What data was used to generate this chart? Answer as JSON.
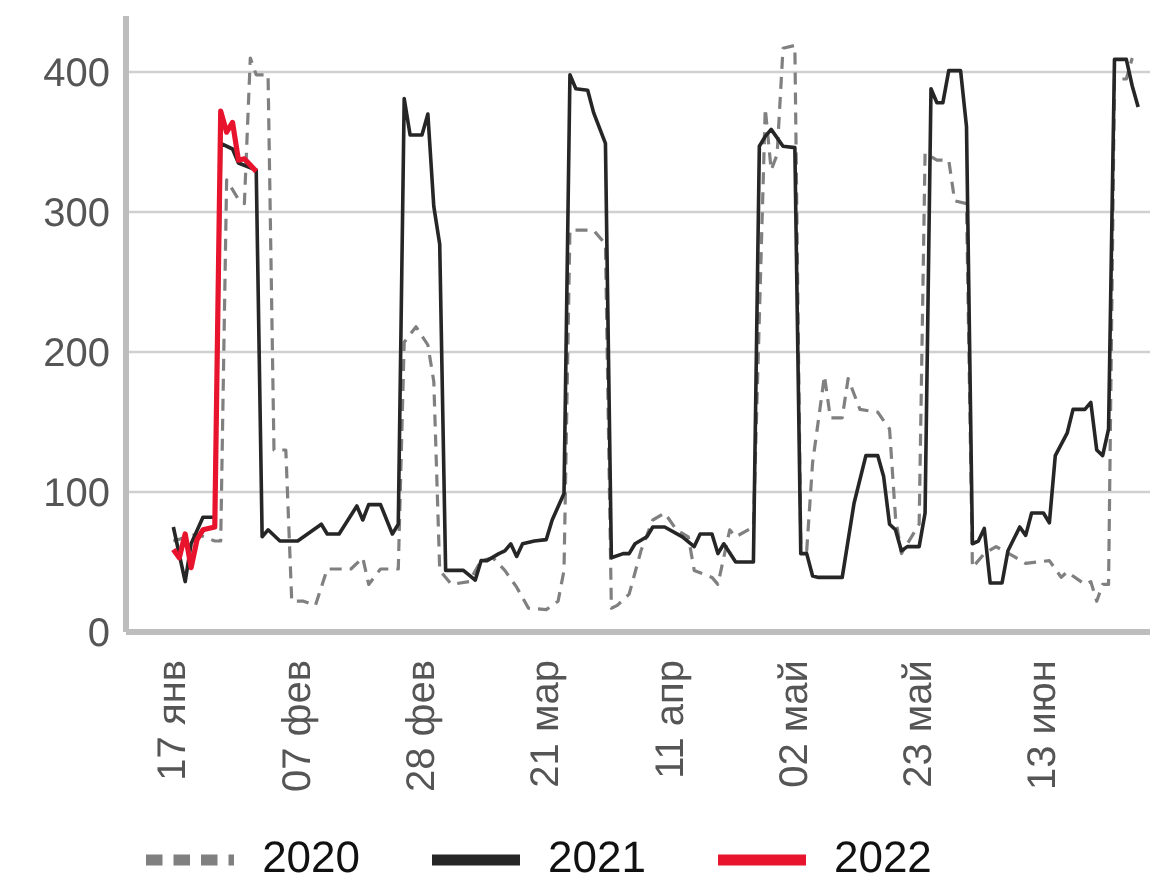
{
  "chart_data": {
    "type": "line",
    "grid": "y",
    "legend": "bottom",
    "xlim": [
      "--01-09",
      "--07-01"
    ],
    "xticks": [
      {
        "value": "--01-17",
        "label": "17 янв"
      },
      {
        "value": "--02-07",
        "label": "07 фев"
      },
      {
        "value": "--02-28",
        "label": "28 фев"
      },
      {
        "value": "--03-21",
        "label": "21 мар"
      },
      {
        "value": "--04-11",
        "label": "11 апр"
      },
      {
        "value": "--05-02",
        "label": "02 май"
      },
      {
        "value": "--05-23",
        "label": "23 май"
      },
      {
        "value": "--06-13",
        "label": "13 июн"
      }
    ],
    "ylim": [
      0,
      440
    ],
    "yticks": [
      0,
      100,
      200,
      300,
      400
    ],
    "series": [
      {
        "name": "2020",
        "color": "#808080",
        "line_style": "dashed",
        "x": [
          "--01-17",
          "--01-21",
          "--01-24",
          "--01-25",
          "--01-26",
          "--01-28",
          "--01-29",
          "--01-30",
          "--01-31",
          "--02-02",
          "--02-03",
          "--02-05",
          "--02-06",
          "--02-08",
          "--02-10",
          "--02-12",
          "--02-16",
          "--02-18",
          "--02-19",
          "--02-21",
          "--02-24",
          "--02-25",
          "--02-27",
          "--03-01",
          "--03-02",
          "--03-03",
          "--03-05",
          "--03-08",
          "--03-10",
          "--03-12",
          "--03-14",
          "--03-16",
          "--03-18",
          "--03-21",
          "--03-23",
          "--03-24",
          "--03-25",
          "--03-29",
          "--03-31",
          "--04-01",
          "--04-02",
          "--04-04",
          "--04-06",
          "--04-08",
          "--04-10",
          "--04-12",
          "--04-14",
          "--04-15",
          "--04-18",
          "--04-19",
          "--04-21",
          "--04-22",
          "--04-25",
          "--04-27",
          "--04-28",
          "--04-29",
          "--04-30",
          "--05-02",
          "--05-03",
          "--05-04",
          "--05-05",
          "--05-07",
          "--05-08",
          "--05-10",
          "--05-11",
          "--05-13",
          "--05-16",
          "--05-18",
          "--05-19",
          "--05-20",
          "--05-21",
          "--05-23",
          "--05-24",
          "--05-26",
          "--05-28",
          "--05-29",
          "--05-31",
          "--06-01",
          "--06-03",
          "--06-05",
          "--06-08",
          "--06-10",
          "--06-14",
          "--06-16",
          "--06-17",
          "--06-20",
          "--06-21",
          "--06-22",
          "--06-23",
          "--06-24",
          "--06-25",
          "--06-27",
          "--06-28"
        ],
        "values": [
          65,
          70,
          65,
          65,
          323,
          309,
          306,
          410,
          398,
          398,
          130,
          130,
          22,
          22,
          19,
          45,
          45,
          53,
          34,
          45,
          45,
          207,
          218,
          205,
          179,
          44,
          34,
          36,
          51,
          53,
          44,
          32,
          17,
          16,
          22,
          44,
          287,
          287,
          277,
          17,
          19,
          27,
          58,
          80,
          85,
          73,
          68,
          44,
          39,
          34,
          73,
          68,
          75,
          374,
          330,
          341,
          417,
          419,
          63,
          58,
          121,
          183,
          153,
          153,
          181,
          159,
          157,
          145,
          82,
          56,
          63,
          77,
          342,
          337,
          337,
          308,
          306,
          46,
          56,
          61,
          54,
          49,
          51,
          39,
          43,
          34,
          36,
          22,
          34,
          34,
          395,
          395,
          410
        ]
      },
      {
        "name": "2021",
        "color": "#262626",
        "line_style": "solid",
        "x": [
          "--01-17",
          "--01-19",
          "--01-20",
          "--01-22",
          "--01-24",
          "--01-25",
          "--01-27",
          "--01-28",
          "--01-31",
          "--02-01",
          "--02-02",
          "--02-04",
          "--02-07",
          "--02-11",
          "--02-12",
          "--02-14",
          "--02-17",
          "--02-18",
          "--02-19",
          "--02-21",
          "--02-23",
          "--02-24",
          "--02-25",
          "--02-26",
          "--02-28",
          "--03-01",
          "--03-02",
          "--03-03",
          "--03-04",
          "--03-07",
          "--03-09",
          "--03-10",
          "--03-11",
          "--03-13",
          "--03-14",
          "--03-15",
          "--03-16",
          "--03-17",
          "--03-19",
          "--03-21",
          "--03-22",
          "--03-24",
          "--03-25",
          "--03-26",
          "--03-28",
          "--03-29",
          "--03-31",
          "--04-01",
          "--04-03",
          "--04-04",
          "--04-05",
          "--04-07",
          "--04-08",
          "--04-10",
          "--04-13",
          "--04-15",
          "--04-16",
          "--04-18",
          "--04-19",
          "--04-20",
          "--04-22",
          "--04-25",
          "--04-26",
          "--04-27",
          "--04-28",
          "--04-30",
          "--05-02",
          "--05-03",
          "--05-04",
          "--05-05",
          "--05-06",
          "--05-10",
          "--05-12",
          "--05-14",
          "--05-16",
          "--05-17",
          "--05-18",
          "--05-19",
          "--05-20",
          "--05-21",
          "--05-23",
          "--05-24",
          "--05-25",
          "--05-26",
          "--05-27",
          "--05-28",
          "--05-30",
          "--05-31",
          "--06-01",
          "--06-02",
          "--06-03",
          "--06-04",
          "--06-06",
          "--06-07",
          "--06-09",
          "--06-10",
          "--06-11",
          "--06-13",
          "--06-14",
          "--06-15",
          "--06-17",
          "--06-18",
          "--06-20",
          "--06-21",
          "--06-22",
          "--06-23",
          "--06-24",
          "--06-25",
          "--06-27",
          "--06-28",
          "--06-29"
        ],
        "values": [
          75,
          36,
          63,
          82,
          82,
          349,
          345,
          335,
          330,
          68,
          73,
          65,
          65,
          77,
          70,
          70,
          90,
          80,
          91,
          91,
          70,
          77,
          381,
          355,
          355,
          370,
          304,
          277,
          44,
          44,
          37,
          51,
          51,
          56,
          58,
          63,
          54,
          63,
          65,
          66,
          80,
          99,
          398,
          388,
          387,
          371,
          349,
          53,
          56,
          56,
          63,
          68,
          75,
          75,
          68,
          61,
          70,
          70,
          56,
          63,
          50,
          50,
          347,
          354,
          359,
          347,
          346,
          56,
          56,
          40,
          39,
          39,
          92,
          126,
          126,
          111,
          77,
          73,
          58,
          61,
          61,
          85,
          388,
          378,
          378,
          401,
          401,
          361,
          63,
          65,
          74,
          35,
          35,
          58,
          75,
          69,
          85,
          85,
          78,
          126,
          142,
          159,
          159,
          164,
          130,
          126,
          145,
          409,
          409,
          390,
          375
        ]
      },
      {
        "name": "2022",
        "color": "#e8132d",
        "line_style": "solid",
        "x": [
          "--01-17",
          "--01-18",
          "--01-19",
          "--01-20",
          "--01-21",
          "--01-22",
          "--01-24",
          "--01-25",
          "--01-26",
          "--01-27",
          "--01-28",
          "--01-29",
          "--01-31"
        ],
        "values": [
          59,
          53,
          70,
          46,
          66,
          73,
          75,
          372,
          357,
          364,
          337,
          338,
          329
        ]
      }
    ]
  }
}
